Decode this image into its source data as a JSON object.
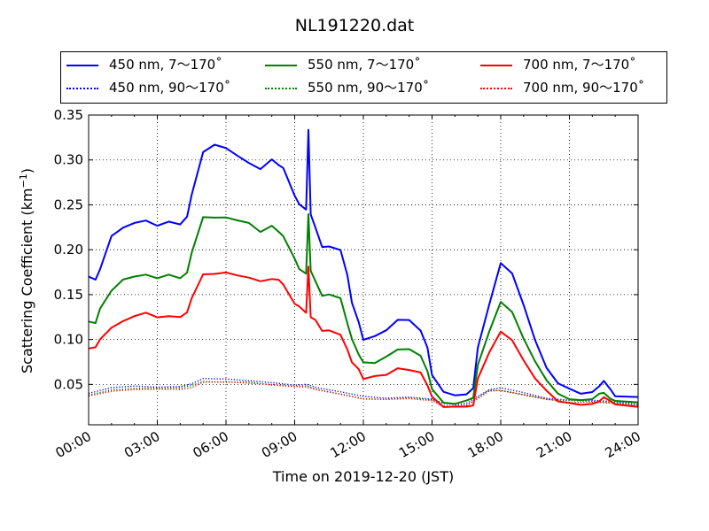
{
  "chart_data": {
    "type": "line",
    "title": "NL191220.dat",
    "xlabel": "Time on 2019-12-20 (JST)",
    "ylabel_main": "Scattering Coefficient (km",
    "ylabel_sup": "−1",
    "ylabel_close": ")",
    "xlim": [
      0,
      24
    ],
    "ylim": [
      0.005,
      0.35
    ],
    "x_ticks": [
      0,
      3,
      6,
      9,
      12,
      15,
      18,
      21,
      24
    ],
    "x_tick_labels": [
      "00:00",
      "03:00",
      "06:00",
      "09:00",
      "12:00",
      "15:00",
      "18:00",
      "21:00",
      "24:00"
    ],
    "y_ticks": [
      0.05,
      0.1,
      0.15,
      0.2,
      0.25,
      0.3,
      0.35
    ],
    "y_tick_labels": [
      "0.05",
      "0.10",
      "0.15",
      "0.20",
      "0.25",
      "0.30",
      "0.35"
    ],
    "grid": true,
    "legend_position": "above plot",
    "series": [
      {
        "name": "450 nm, 7～170˚",
        "color": "#0000ff",
        "style": "solid",
        "x": [
          0,
          0.3,
          0.5,
          1,
          1.5,
          2,
          2.5,
          3,
          3.5,
          4,
          4.3,
          4.5,
          5,
          5.5,
          6,
          6.5,
          7,
          7.5,
          8,
          8.3,
          8.5,
          9,
          9.2,
          9.5,
          9.6,
          9.7,
          9.9,
          10.2,
          10.5,
          11,
          11.3,
          11.5,
          11.8,
          12,
          12.5,
          13,
          13.5,
          14,
          14.5,
          14.8,
          15,
          15.5,
          16,
          16.5,
          16.8,
          17,
          17.5,
          18,
          18.5,
          19,
          19.5,
          20,
          20.5,
          21,
          21.5,
          22,
          22.3,
          22.5,
          22.8,
          23,
          24
        ],
        "y": [
          0.17,
          0.165,
          0.18,
          0.215,
          0.225,
          0.23,
          0.232,
          0.228,
          0.232,
          0.228,
          0.235,
          0.26,
          0.31,
          0.315,
          0.312,
          0.305,
          0.295,
          0.29,
          0.3,
          0.295,
          0.29,
          0.26,
          0.25,
          0.245,
          0.335,
          0.24,
          0.225,
          0.205,
          0.205,
          0.2,
          0.17,
          0.14,
          0.12,
          0.1,
          0.105,
          0.11,
          0.12,
          0.12,
          0.11,
          0.09,
          0.06,
          0.04,
          0.038,
          0.04,
          0.045,
          0.09,
          0.14,
          0.185,
          0.175,
          0.14,
          0.1,
          0.07,
          0.05,
          0.045,
          0.04,
          0.04,
          0.048,
          0.055,
          0.045,
          0.038,
          0.036
        ]
      },
      {
        "name": "450 nm, 90～170˚",
        "color": "#0000ff",
        "style": "dotted",
        "x": [
          0,
          1,
          2,
          3,
          4,
          4.5,
          5,
          6,
          7,
          8,
          9,
          9.5,
          10,
          11,
          12,
          13,
          14,
          15,
          15.5,
          16,
          16.5,
          17,
          17.5,
          18,
          19,
          20,
          21,
          22,
          23,
          24
        ],
        "y": [
          0.04,
          0.046,
          0.048,
          0.047,
          0.048,
          0.05,
          0.056,
          0.056,
          0.054,
          0.052,
          0.05,
          0.05,
          0.046,
          0.042,
          0.036,
          0.035,
          0.036,
          0.034,
          0.028,
          0.027,
          0.028,
          0.036,
          0.045,
          0.046,
          0.04,
          0.035,
          0.032,
          0.033,
          0.03,
          0.028
        ]
      },
      {
        "name": "550 nm, 7～170˚",
        "color": "#008000",
        "style": "solid",
        "x": [
          0,
          0.3,
          0.5,
          1,
          1.5,
          2,
          2.5,
          3,
          3.5,
          4,
          4.3,
          4.5,
          5,
          5.5,
          6,
          6.5,
          7,
          7.5,
          8,
          8.3,
          8.5,
          9,
          9.2,
          9.5,
          9.6,
          9.7,
          9.9,
          10.2,
          10.5,
          11,
          11.3,
          11.5,
          11.8,
          12,
          12.5,
          13,
          13.5,
          14,
          14.5,
          14.8,
          15,
          15.5,
          16,
          16.5,
          16.8,
          17,
          17.5,
          18,
          18.5,
          19,
          19.5,
          20,
          20.5,
          21,
          21.5,
          22,
          22.3,
          22.5,
          22.8,
          23,
          24
        ],
        "y": [
          0.12,
          0.12,
          0.135,
          0.155,
          0.165,
          0.17,
          0.172,
          0.168,
          0.172,
          0.168,
          0.175,
          0.195,
          0.235,
          0.237,
          0.235,
          0.232,
          0.228,
          0.22,
          0.225,
          0.22,
          0.215,
          0.19,
          0.18,
          0.175,
          0.24,
          0.175,
          0.165,
          0.15,
          0.15,
          0.145,
          0.12,
          0.1,
          0.085,
          0.075,
          0.075,
          0.08,
          0.088,
          0.088,
          0.082,
          0.065,
          0.045,
          0.03,
          0.03,
          0.032,
          0.035,
          0.07,
          0.11,
          0.14,
          0.13,
          0.1,
          0.075,
          0.055,
          0.04,
          0.035,
          0.033,
          0.033,
          0.038,
          0.04,
          0.035,
          0.03,
          0.03
        ]
      },
      {
        "name": "550 nm, 90～170˚",
        "color": "#008000",
        "style": "dotted",
        "x": [
          0,
          1,
          2,
          3,
          4,
          4.5,
          5,
          6,
          7,
          8,
          9,
          9.5,
          10,
          11,
          12,
          13,
          14,
          15,
          15.5,
          16,
          16.5,
          17,
          17.5,
          18,
          19,
          20,
          21,
          22,
          23,
          24
        ],
        "y": [
          0.038,
          0.044,
          0.046,
          0.045,
          0.046,
          0.048,
          0.053,
          0.053,
          0.052,
          0.05,
          0.048,
          0.048,
          0.044,
          0.04,
          0.035,
          0.034,
          0.035,
          0.033,
          0.027,
          0.026,
          0.027,
          0.035,
          0.043,
          0.044,
          0.039,
          0.034,
          0.031,
          0.032,
          0.029,
          0.027
        ]
      },
      {
        "name": "700 nm, 7～170˚",
        "color": "#ff0000",
        "style": "solid",
        "x": [
          0,
          0.3,
          0.5,
          1,
          1.5,
          2,
          2.5,
          3,
          3.5,
          4,
          4.3,
          4.5,
          5,
          5.5,
          6,
          6.5,
          7,
          7.5,
          8,
          8.3,
          8.5,
          9,
          9.2,
          9.5,
          9.6,
          9.7,
          9.9,
          10.2,
          10.5,
          11,
          11.3,
          11.5,
          11.8,
          12,
          12.5,
          13,
          13.5,
          14,
          14.5,
          14.8,
          15,
          15.5,
          16,
          16.5,
          16.8,
          17,
          17.5,
          18,
          18.5,
          19,
          19.5,
          20,
          20.5,
          21,
          21.5,
          22,
          22.3,
          22.5,
          22.8,
          23,
          24
        ],
        "y": [
          0.09,
          0.09,
          0.1,
          0.115,
          0.122,
          0.127,
          0.128,
          0.125,
          0.128,
          0.125,
          0.13,
          0.145,
          0.172,
          0.175,
          0.175,
          0.172,
          0.17,
          0.165,
          0.168,
          0.165,
          0.16,
          0.14,
          0.135,
          0.13,
          0.18,
          0.125,
          0.12,
          0.11,
          0.11,
          0.105,
          0.09,
          0.075,
          0.065,
          0.058,
          0.058,
          0.06,
          0.067,
          0.067,
          0.063,
          0.05,
          0.035,
          0.025,
          0.025,
          0.026,
          0.028,
          0.055,
          0.085,
          0.108,
          0.1,
          0.078,
          0.058,
          0.042,
          0.033,
          0.03,
          0.028,
          0.028,
          0.033,
          0.035,
          0.03,
          0.026,
          0.025
        ]
      },
      {
        "name": "700 nm, 90～170˚",
        "color": "#ff0000",
        "style": "dotted",
        "x": [
          0,
          1,
          2,
          3,
          4,
          4.5,
          5,
          6,
          7,
          8,
          9,
          9.5,
          10,
          11,
          12,
          13,
          14,
          15,
          15.5,
          16,
          16.5,
          17,
          17.5,
          18,
          19,
          20,
          21,
          22,
          23,
          24
        ],
        "y": [
          0.037,
          0.043,
          0.045,
          0.044,
          0.045,
          0.047,
          0.052,
          0.052,
          0.051,
          0.049,
          0.047,
          0.047,
          0.043,
          0.039,
          0.034,
          0.033,
          0.034,
          0.032,
          0.026,
          0.025,
          0.026,
          0.034,
          0.042,
          0.043,
          0.038,
          0.033,
          0.03,
          0.031,
          0.028,
          0.026
        ]
      }
    ]
  }
}
